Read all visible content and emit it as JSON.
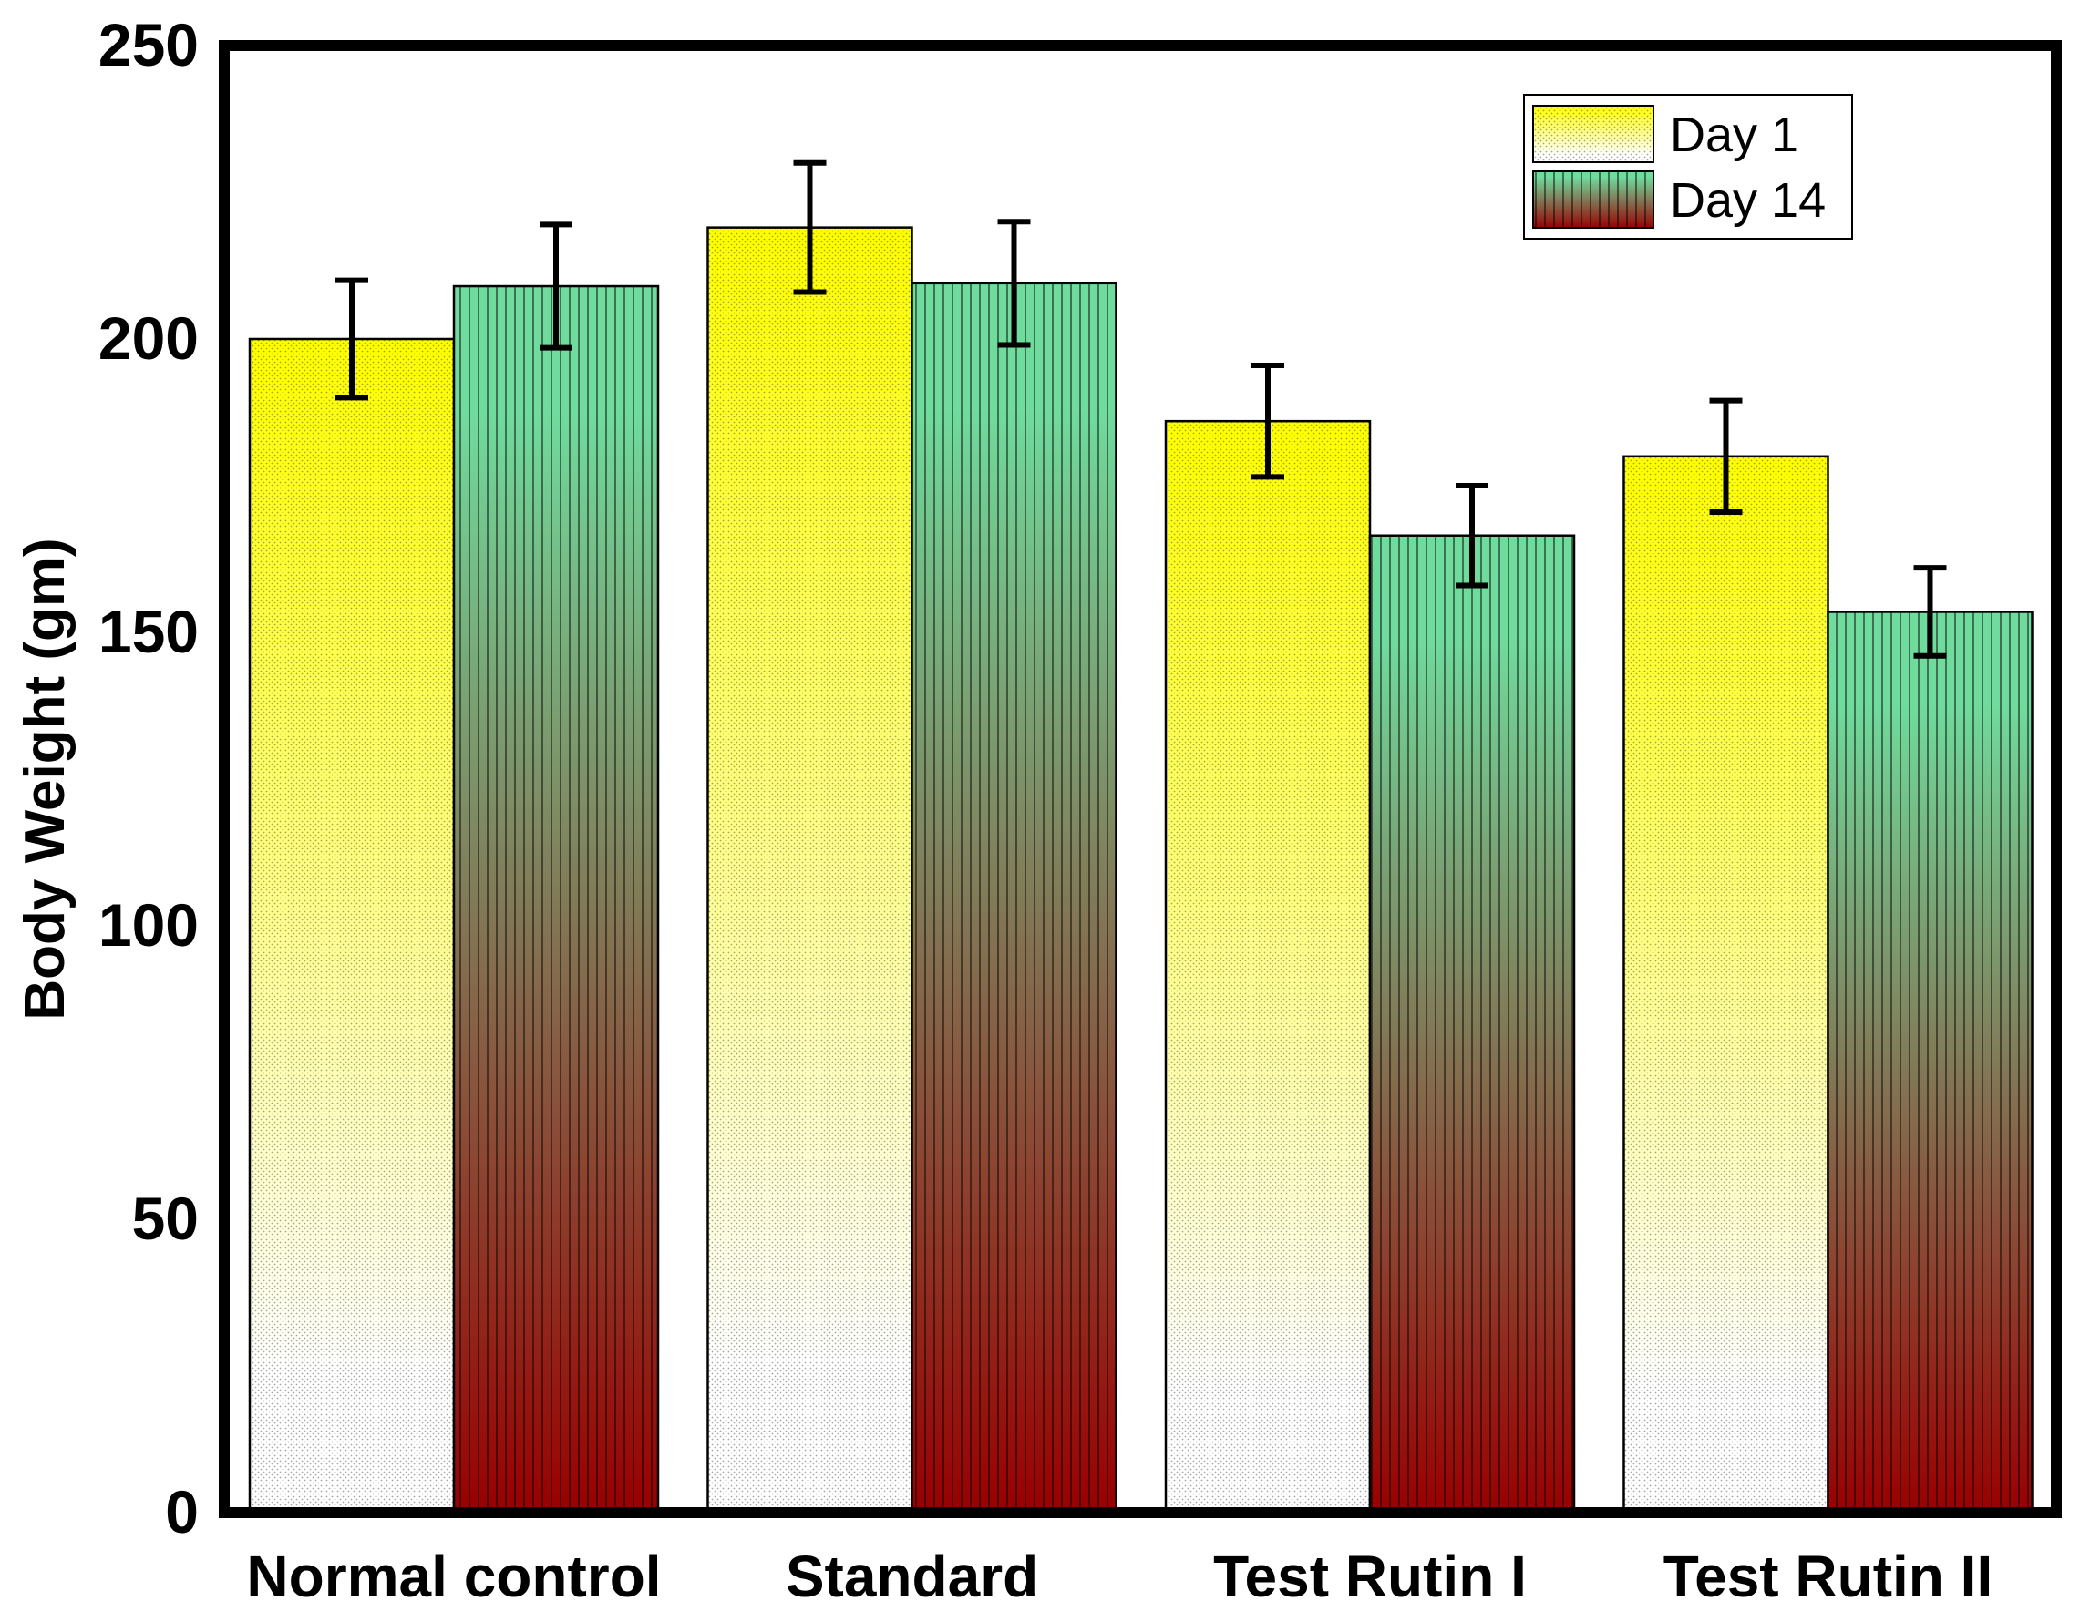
{
  "chart_data": {
    "type": "bar",
    "title": "",
    "xlabel": "",
    "ylabel": "Body Weight (gm)",
    "ylim": [
      0,
      250
    ],
    "yticks": [
      0,
      50,
      100,
      150,
      200,
      250
    ],
    "grid": false,
    "legend_position": "top-right",
    "categories": [
      "Normal control",
      "Standard",
      "Test Rutin I",
      "Test Rutin II"
    ],
    "series": [
      {
        "name": "Day 1",
        "values": [
          200,
          219,
          186,
          180
        ],
        "errors": [
          10,
          11,
          9.5,
          9.5
        ],
        "colors": [
          "#ffff00",
          "#ffffff"
        ],
        "pattern": "dots"
      },
      {
        "name": "Day 14",
        "values": [
          209,
          209.5,
          166.5,
          153.5
        ],
        "errors": [
          10.5,
          10.5,
          8.5,
          7.5
        ],
        "colors": [
          "#6fdc9d",
          "#990000"
        ],
        "pattern": "vertical-lines"
      }
    ]
  }
}
